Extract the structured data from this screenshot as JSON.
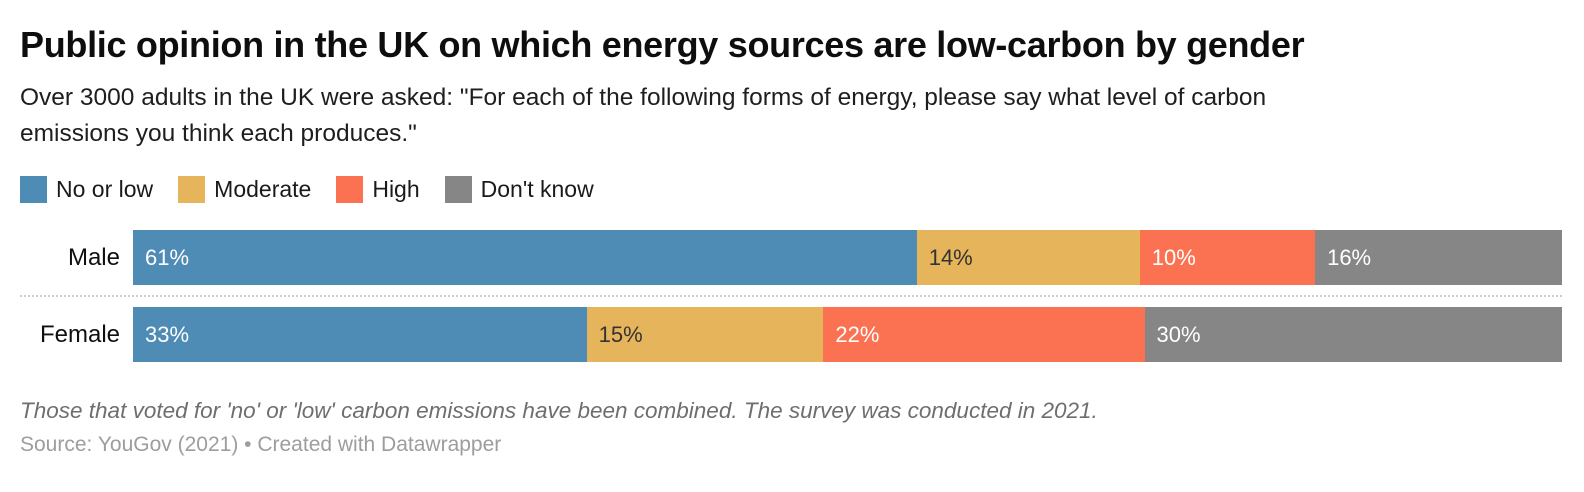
{
  "header": {
    "title": "Public opinion in the UK on which energy sources are low-carbon by gender",
    "subtitle_lines": [
      "Over 3000 adults in the UK were asked: \"For each of the following forms of energy, please say what level of carbon",
      "emissions you think each produces.\""
    ]
  },
  "legend": {
    "position": "top",
    "items": [
      {
        "label": "No or low",
        "color": "#4E8BB5"
      },
      {
        "label": "Moderate",
        "color": "#E6B45A"
      },
      {
        "label": "High",
        "color": "#FB7252"
      },
      {
        "label": "Don't know",
        "color": "#868686"
      }
    ]
  },
  "chart_data": {
    "type": "bar",
    "variant": "stacked-horizontal-percent",
    "title": "Public opinion in the UK on which energy sources are low-carbon by gender",
    "subtitle": "Over 3000 adults in the UK were asked: \"For each of the following forms of energy, please say what level of carbon emissions you think each produces.\"",
    "categories": [
      "Male",
      "Female"
    ],
    "series": [
      {
        "name": "No or low",
        "color": "#4E8BB5",
        "label_color": "#ffffff",
        "values": [
          61,
          33
        ]
      },
      {
        "name": "Moderate",
        "color": "#E6B45A",
        "label_color": "#333333",
        "values": [
          14,
          15
        ]
      },
      {
        "name": "High",
        "color": "#FB7252",
        "label_color": "#ffffff",
        "values": [
          10,
          22
        ]
      },
      {
        "name": "Don't know",
        "color": "#868686",
        "label_color": "#ffffff",
        "values": [
          16,
          30
        ]
      }
    ],
    "value_suffix": "%",
    "xlim": [
      0,
      100
    ],
    "grid": false,
    "legend_position": "top",
    "bar_labels": "inside-left",
    "row_separator": "dotted"
  },
  "footnote": "Those that voted for 'no' or 'low' carbon emissions have been combined. The survey was conducted in 2021.",
  "source": "Source: YouGov (2021) • Created with Datawrapper"
}
